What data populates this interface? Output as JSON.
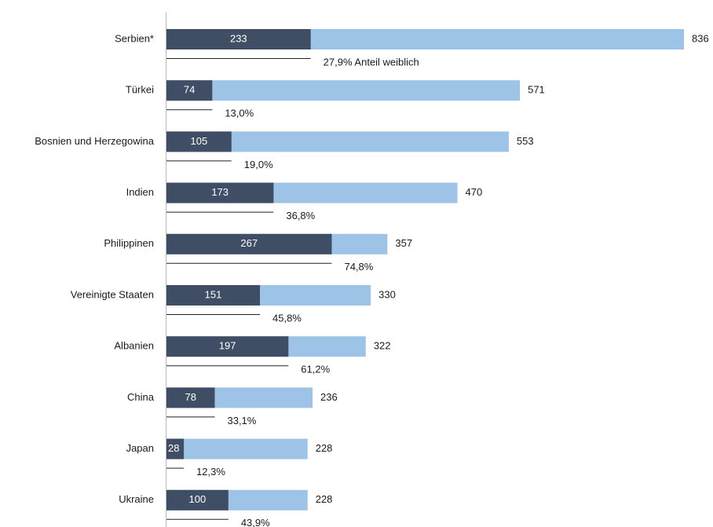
{
  "chart_data": {
    "type": "bar",
    "categories": [
      "Serbien*",
      "Türkei",
      "Bosnien und Herzegowina",
      "Indien",
      "Philippinen",
      "Vereinigte Staaten",
      "Albanien",
      "China",
      "Japan",
      "Ukraine"
    ],
    "series": [
      {
        "color": "#9dc3e6",
        "values": [
          836,
          571,
          553,
          470,
          357,
          330,
          322,
          236,
          228,
          228
        ]
      },
      {
        "color": "#404e65",
        "values": [
          233,
          74,
          105,
          173,
          267,
          151,
          197,
          78,
          28,
          100
        ]
      }
    ],
    "shares": {
      "values": [
        27.9,
        13.0,
        19.0,
        36.8,
        74.8,
        45.8,
        61.2,
        33.1,
        12.3,
        43.9
      ],
      "value_labels": [
        "27,9% Anteil weiblich",
        "13,0%",
        "19,0%",
        "36,8%",
        "74,8%",
        "45,8%",
        "61,2%",
        "33,1%",
        "12,3%",
        "43,9%"
      ]
    }
  }
}
